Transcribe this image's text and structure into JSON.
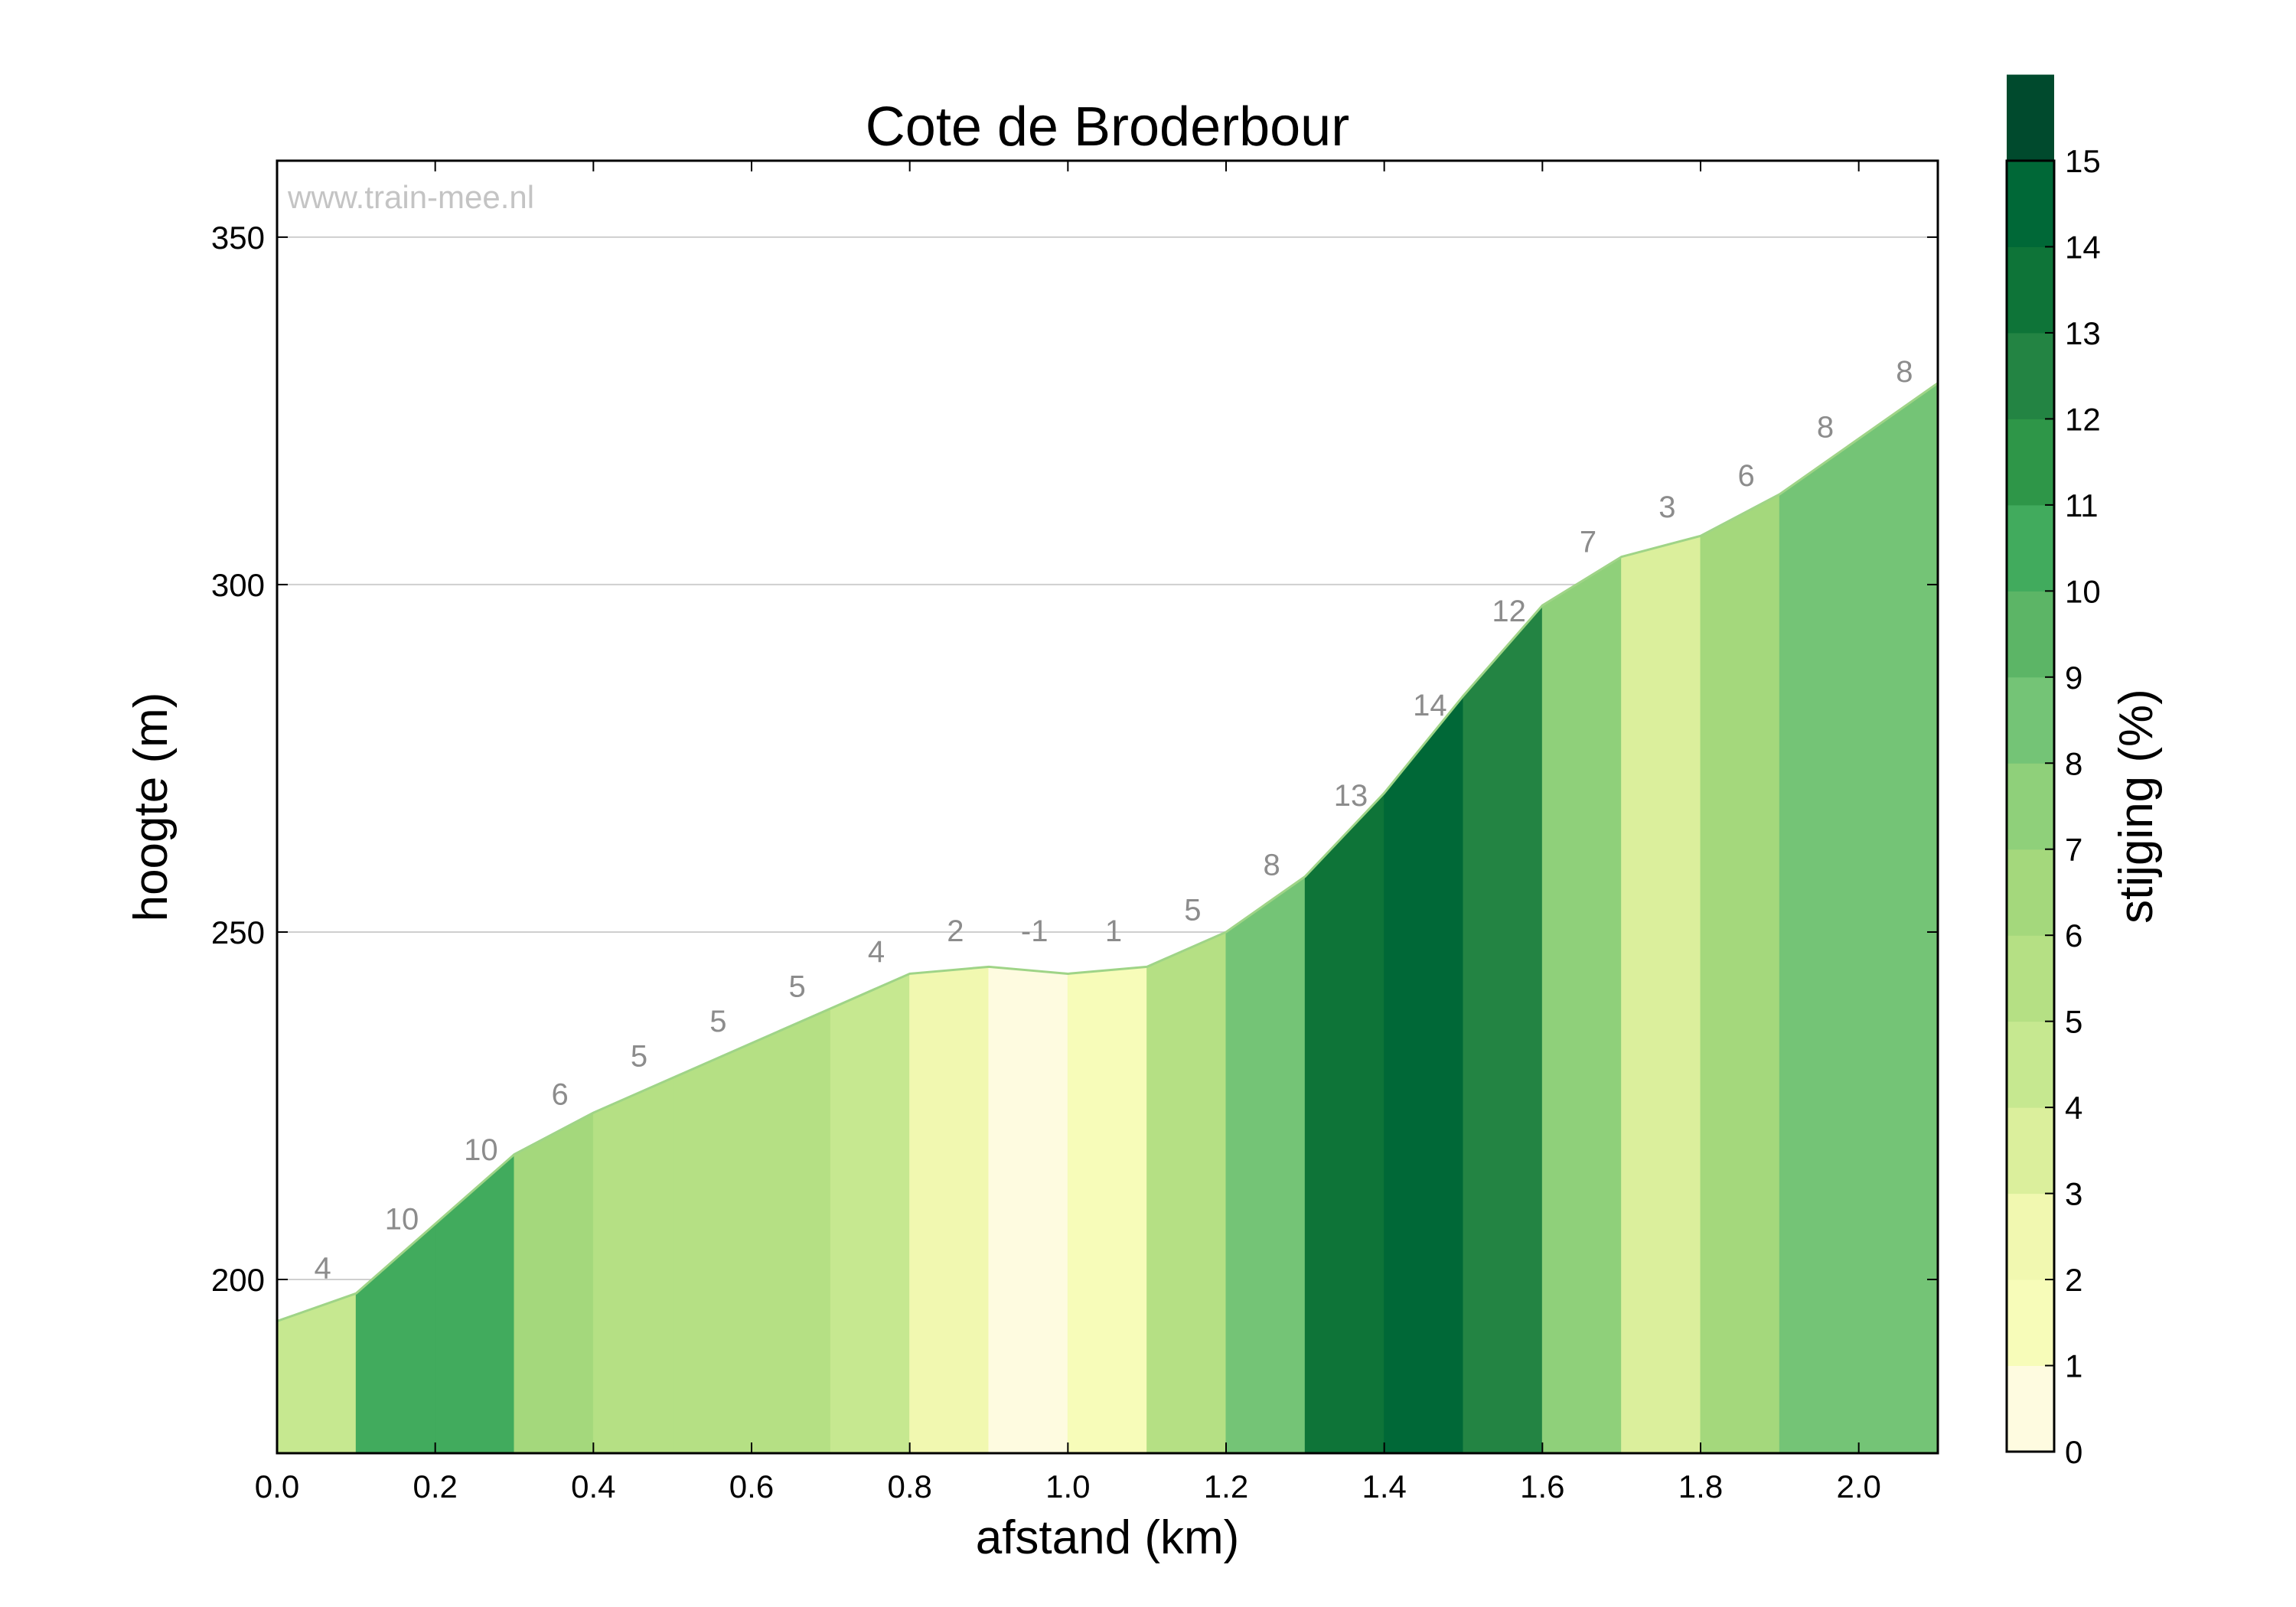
{
  "watermark": "www.train-mee.nl",
  "chart_data": {
    "type": "area",
    "title": "Cote de Broderbour",
    "xlabel": "afstand (km)",
    "ylabel": "hoogte (m)",
    "xlim": [
      0,
      2.1
    ],
    "ylim": [
      175,
      361
    ],
    "x_ticks": [
      0.0,
      0.2,
      0.4,
      0.6,
      0.8,
      1.0,
      1.2,
      1.4,
      1.6,
      1.8,
      2.0
    ],
    "x_tick_labels": [
      "0.0",
      "0.2",
      "0.4",
      "0.6",
      "0.8",
      "1.0",
      "1.2",
      "1.4",
      "1.6",
      "1.8",
      "2.0"
    ],
    "y_ticks": [
      200,
      250,
      300,
      350
    ],
    "y_tick_labels": [
      "200",
      "250",
      "300",
      "350"
    ],
    "grid": "horizontal",
    "profile": {
      "x": [
        0.0,
        0.1,
        0.2,
        0.3,
        0.4,
        0.5,
        0.6,
        0.7,
        0.8,
        0.9,
        1.0,
        1.1,
        1.2,
        1.3,
        1.4,
        1.5,
        1.6,
        1.7,
        1.8,
        1.9,
        2.0,
        2.1
      ],
      "y": [
        194,
        198,
        208,
        218,
        224,
        229,
        234,
        239,
        244,
        245,
        244,
        245,
        250,
        258,
        270,
        284,
        297,
        304,
        307,
        313,
        321,
        329
      ]
    },
    "segments": [
      {
        "x0": 0.0,
        "x1": 0.1,
        "grade": 4
      },
      {
        "x0": 0.1,
        "x1": 0.2,
        "grade": 10
      },
      {
        "x0": 0.2,
        "x1": 0.3,
        "grade": 10
      },
      {
        "x0": 0.3,
        "x1": 0.4,
        "grade": 6
      },
      {
        "x0": 0.4,
        "x1": 0.5,
        "grade": 5
      },
      {
        "x0": 0.5,
        "x1": 0.6,
        "grade": 5
      },
      {
        "x0": 0.6,
        "x1": 0.7,
        "grade": 5
      },
      {
        "x0": 0.7,
        "x1": 0.8,
        "grade": 4
      },
      {
        "x0": 0.8,
        "x1": 0.9,
        "grade": 2
      },
      {
        "x0": 0.9,
        "x1": 1.0,
        "grade": -1
      },
      {
        "x0": 1.0,
        "x1": 1.1,
        "grade": 1
      },
      {
        "x0": 1.1,
        "x1": 1.2,
        "grade": 5
      },
      {
        "x0": 1.2,
        "x1": 1.3,
        "grade": 8
      },
      {
        "x0": 1.3,
        "x1": 1.4,
        "grade": 13
      },
      {
        "x0": 1.4,
        "x1": 1.5,
        "grade": 14
      },
      {
        "x0": 1.5,
        "x1": 1.6,
        "grade": 12
      },
      {
        "x0": 1.6,
        "x1": 1.7,
        "grade": 7
      },
      {
        "x0": 1.7,
        "x1": 1.8,
        "grade": 3
      },
      {
        "x0": 1.8,
        "x1": 1.9,
        "grade": 6
      },
      {
        "x0": 1.9,
        "x1": 2.0,
        "grade": 8
      },
      {
        "x0": 2.0,
        "x1": 2.1,
        "grade": 8
      }
    ],
    "colorbar": {
      "label": "stijging (%)",
      "range": [
        0,
        15
      ],
      "ticks": [
        0,
        1,
        2,
        3,
        4,
        5,
        6,
        7,
        8,
        9,
        10,
        11,
        12,
        13,
        14,
        15
      ],
      "tick_labels": [
        "0",
        "1",
        "2",
        "3",
        "4",
        "5",
        "6",
        "7",
        "8",
        "9",
        "10",
        "11",
        "12",
        "13",
        "14",
        "15"
      ],
      "colors": [
        "#fefbe0",
        "#f7fcb9",
        "#f1f8b0",
        "#dbef9c",
        "#c6e890",
        "#b5e084",
        "#a4d87c",
        "#8fd07a",
        "#74c476",
        "#5cb566",
        "#41ab5d",
        "#2e9648",
        "#238443",
        "#0e7438",
        "#006837",
        "#004a2d"
      ]
    }
  }
}
